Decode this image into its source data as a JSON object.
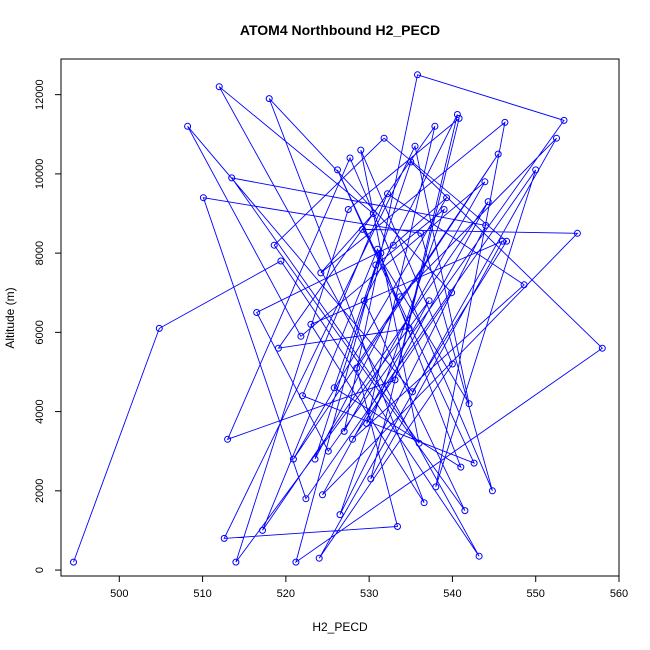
{
  "chart_data": {
    "type": "scatter",
    "title": "ATOM4 Northbound H2_PECD",
    "xlabel": "H2_PECD",
    "ylabel": "Altitude (m)",
    "xlim": [
      493,
      560
    ],
    "ylim": [
      -150,
      12900
    ],
    "x_ticks": [
      500,
      510,
      520,
      530,
      540,
      550,
      560
    ],
    "y_ticks": [
      0,
      2000,
      4000,
      6000,
      8000,
      10000,
      12000
    ],
    "grid": false,
    "legend": "none",
    "color": "#0000ff",
    "marker": "open-circle",
    "connected": true,
    "series": [
      {
        "x": [
          494.5,
          504.8,
          519.4,
          543.2,
          512.0,
          530.5,
          524.2,
          546.3,
          538.0,
          550.0,
          522.4,
          510.1,
          536.2,
          544.8,
          527.7,
          513.0,
          533.1,
          540.6,
          529.4,
          541.5,
          518.6,
          531.8,
          546.5,
          535.2,
          508.2,
          521.8,
          543.9,
          527.0,
          535.8,
          553.4,
          525.1,
          516.5,
          532.9,
          539.3,
          520.9,
          545.5,
          528.5,
          533.4,
          512.6,
          535.5,
          542.0,
          529.2,
          555.0,
          524.4,
          537.2,
          514.0,
          527.5,
          540.8,
          530.2,
          546.0,
          523.0,
          536.6,
          518.0,
          539.9,
          528.0,
          548.6,
          532.2,
          522.0,
          542.6,
          526.2,
          534.8,
          519.1,
          537.9,
          529.7,
          544.3,
          517.2,
          531.0,
          541.0,
          525.8,
          535.0,
          558.0,
          521.2,
          530.8,
          539.0,
          526.5,
          544.0,
          513.5,
          536.0,
          529.0,
          540.0,
          524.0,
          552.5,
          533.7,
          523.5,
          531.4
        ],
        "y": [
          200,
          6100,
          7800,
          350,
          12200,
          9000,
          7500,
          11300,
          2100,
          10100,
          1800,
          9400,
          8500,
          2000,
          10400,
          3300,
          4800,
          11500,
          6800,
          1500,
          8200,
          10900,
          8300,
          4500,
          11200,
          5900,
          9800,
          3500,
          12500,
          11350,
          3000,
          6500,
          8200,
          9400,
          2800,
          10500,
          5100,
          1100,
          800,
          10700,
          4200,
          8600,
          8500,
          1900,
          6800,
          200,
          9100,
          11400,
          2300,
          8300,
          6200,
          1700,
          11900,
          7000,
          3300,
          7200,
          9500,
          4400,
          2700,
          10100,
          6100,
          5600,
          11200,
          3700,
          9300,
          1000,
          8100,
          2600,
          4600,
          10300,
          5600,
          200,
          7700,
          9100,
          1400,
          8700,
          9900,
          3200,
          10600,
          5200,
          300,
          10900,
          6900,
          2800,
          8000
        ]
      }
    ]
  }
}
